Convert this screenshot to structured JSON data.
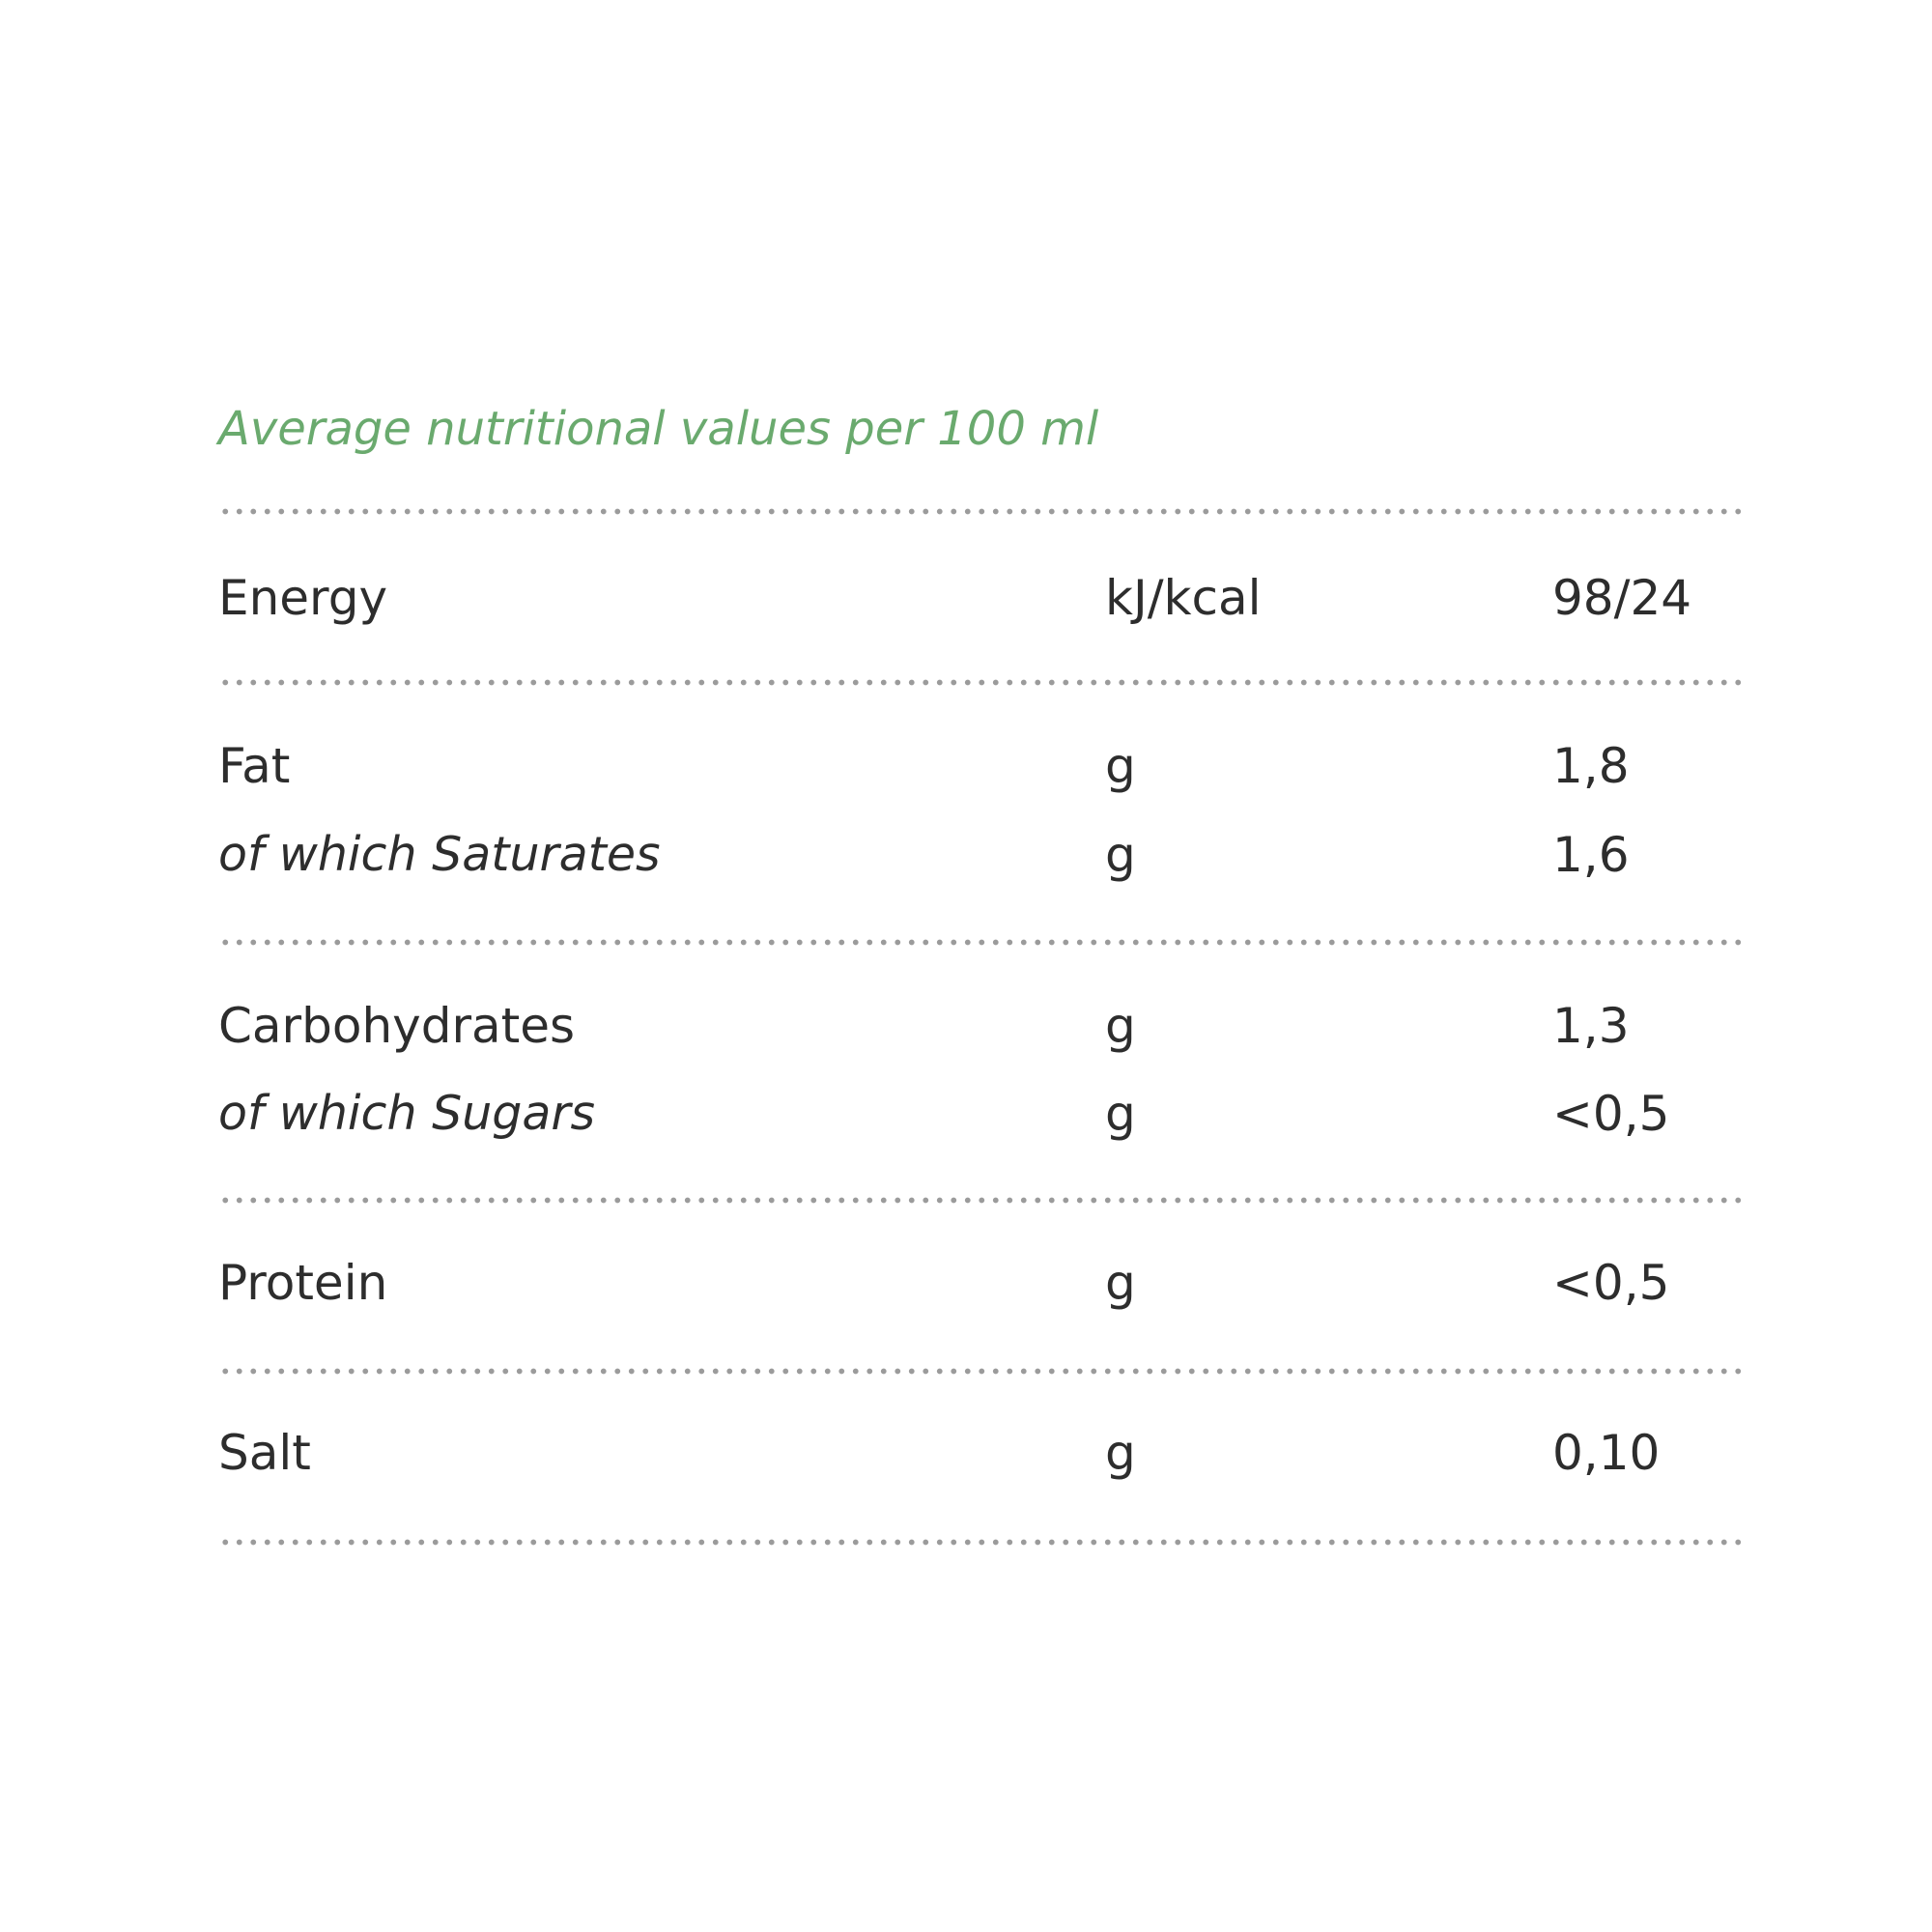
{
  "table": {
    "heading": "Average nutritional values per 100 ml",
    "rows": [
      {
        "name": "Energy",
        "unit": "kJ/kcal",
        "value": "98/24"
      },
      {
        "name": "Fat",
        "unit": "g",
        "value": "1,8"
      },
      {
        "name": "of which Saturates",
        "unit": "g",
        "value": "1,6"
      },
      {
        "name": "Carbohydrates",
        "unit": "g",
        "value": "1,3"
      },
      {
        "name": "of which Sugars",
        "unit": "g",
        "value": "<0,5"
      },
      {
        "name": "Protein",
        "unit": "g",
        "value": "<0,5"
      },
      {
        "name": "Salt",
        "unit": "g",
        "value": "0,10"
      }
    ]
  },
  "colors": {
    "heading": "#6aaa6e",
    "text": "#2d2d2d",
    "rule": "#9b9b9b"
  }
}
